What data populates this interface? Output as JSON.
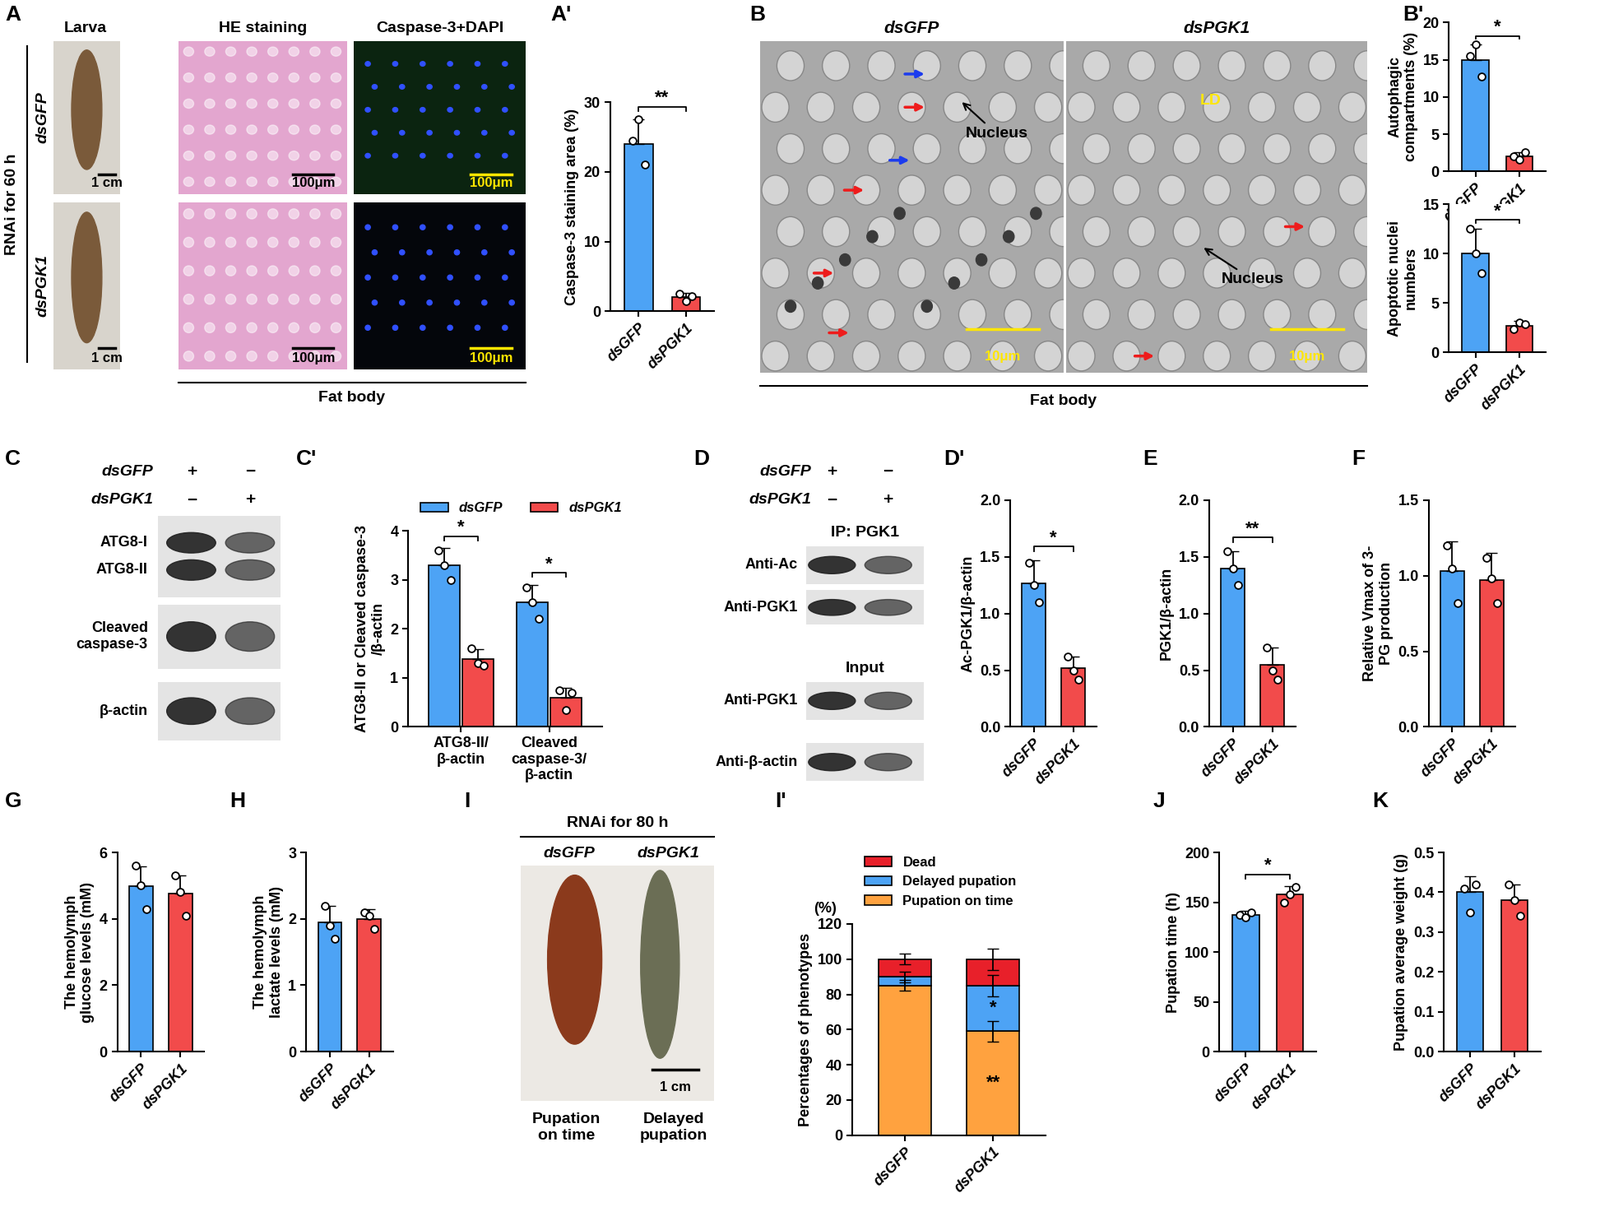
{
  "figure": {
    "image_panels": [
      {
        "panel": "A",
        "group_label": "RNAi for 60 h",
        "rows": [
          "dsGFP",
          "dsPGK1"
        ],
        "column_titles": [
          "Larva",
          "HE staining",
          "Caspase-3+DAPI"
        ],
        "scale_bars": [
          "1 cm",
          "100μm",
          "100μm"
        ],
        "caption": "Fat body"
      },
      {
        "panel": "B",
        "column_titles": [
          "dsGFP",
          "dsPGK1"
        ],
        "labels": [
          [
            "Nucleus"
          ],
          [
            "LD",
            "Nucleus"
          ]
        ],
        "scale_bar": "10μm",
        "caption": "Fat body"
      },
      {
        "panel": "C",
        "conditions": [
          {
            "name": "dsGFP",
            "lanes": [
              "+",
              "−"
            ]
          },
          {
            "name": "dsPGK1",
            "lanes": [
              "−",
              "+"
            ]
          }
        ],
        "blots": [
          [
            "ATG8-I",
            "ATG8-II"
          ],
          [
            "Cleaved\ncaspase-3"
          ],
          [
            "β-actin"
          ]
        ]
      },
      {
        "panel": "D",
        "conditions": [
          {
            "name": "dsGFP",
            "lanes": [
              "+",
              "−"
            ]
          },
          {
            "name": "dsPGK1",
            "lanes": [
              "−",
              "+"
            ]
          }
        ],
        "sections": [
          {
            "title": "IP: PGK1",
            "blots": [
              [
                "Anti-Ac"
              ],
              [
                "Anti-PGK1"
              ]
            ]
          },
          {
            "title": "Input",
            "blots": [
              [
                "Anti-PGK1"
              ],
              [
                "Anti-β-actin"
              ]
            ]
          }
        ]
      },
      {
        "panel": "I",
        "title": "RNAi for 80 h",
        "conditions": [
          "dsGFP",
          "dsPGK1"
        ],
        "scale_bar": "1 cm",
        "captions": [
          "Pupation\non time",
          "Delayed\npupation"
        ]
      }
    ]
  },
  "chart_data": [
    {
      "panel": "A'",
      "type": "bar",
      "ylabel": "Caspase-3 staining area (%)",
      "categories": [
        "dsGFP",
        "dsPGK1"
      ],
      "values": [
        24,
        2
      ],
      "errors": [
        3.5,
        0.7
      ],
      "points": [
        [
          24.5,
          27.5,
          21
        ],
        [
          2.5,
          1.5,
          2.2
        ]
      ],
      "colors": [
        "#4da3f5",
        "#f24b4b"
      ],
      "ylim": [
        0,
        30
      ],
      "yticks": [
        0,
        10,
        20,
        30
      ],
      "significance": "**"
    },
    {
      "panel": "B'",
      "type": "bar",
      "ylabel": "Autophagic\ncompartments (%)",
      "categories": [
        "dsGFP",
        "dsPGK1"
      ],
      "values": [
        15,
        2
      ],
      "errors": [
        2,
        0.6
      ],
      "points": [
        [
          15.5,
          17,
          12.8
        ],
        [
          2,
          1.6,
          2.6
        ]
      ],
      "colors": [
        "#4da3f5",
        "#f24b4b"
      ],
      "ylim": [
        0,
        20
      ],
      "yticks": [
        0,
        5,
        10,
        15,
        20
      ],
      "significance": "*"
    },
    {
      "type": "bar",
      "ylabel": "Apoptotic nuclei\nnumbers",
      "categories": [
        "dsGFP",
        "dsPGK1"
      ],
      "values": [
        10,
        2.7
      ],
      "errors": [
        2.5,
        0.5
      ],
      "points": [
        [
          12.5,
          10,
          8
        ],
        [
          2.3,
          3,
          2.8
        ]
      ],
      "colors": [
        "#4da3f5",
        "#f24b4b"
      ],
      "ylim": [
        0,
        15
      ],
      "yticks": [
        0,
        5,
        10,
        15
      ],
      "significance": "*"
    },
    {
      "panel": "C'",
      "type": "bar",
      "ylabel": "ATG8-II or Cleaved caspase-3\n/β-actin",
      "categories": [
        "ATG8-II/\nβ-actin",
        "Cleaved\ncaspase-3/\nβ-actin"
      ],
      "series": [
        {
          "name": "dsGFP",
          "color": "#4da3f5",
          "values": [
            3.3,
            2.55
          ],
          "errors": [
            0.35,
            0.35
          ],
          "points": [
            [
              3.6,
              3.3,
              3.0
            ],
            [
              2.85,
              2.55,
              2.2
            ]
          ]
        },
        {
          "name": "dsPGK1",
          "color": "#f24b4b",
          "values": [
            1.38,
            0.6
          ],
          "errors": [
            0.2,
            0.2
          ],
          "points": [
            [
              1.6,
              1.3,
              1.25
            ],
            [
              0.75,
              0.35,
              0.7
            ]
          ]
        }
      ],
      "ylim": [
        0,
        4
      ],
      "yticks": [
        0,
        1,
        2,
        3,
        4
      ],
      "significance": [
        "*",
        "*"
      ],
      "legend": "upper left"
    },
    {
      "panel": "D'",
      "type": "bar",
      "ylabel": "Ac-PGK1/β-actin",
      "categories": [
        "dsGFP",
        "dsPGK1"
      ],
      "values": [
        1.27,
        0.52
      ],
      "errors": [
        0.2,
        0.1
      ],
      "points": [
        [
          1.45,
          1.25,
          1.1
        ],
        [
          0.62,
          0.5,
          0.42
        ]
      ],
      "colors": [
        "#4da3f5",
        "#f24b4b"
      ],
      "ylim": [
        0,
        2
      ],
      "yticks": [
        {
          "value": 0,
          "label": "0.0"
        },
        0.5,
        {
          "value": 1,
          "label": "1.0"
        },
        1.5,
        {
          "value": 2,
          "label": "2.0"
        }
      ],
      "significance": "*"
    },
    {
      "panel": "E",
      "type": "bar",
      "ylabel": "PGK1/β-actin",
      "categories": [
        "dsGFP",
        "dsPGK1"
      ],
      "values": [
        1.4,
        0.55
      ],
      "errors": [
        0.15,
        0.15
      ],
      "points": [
        [
          1.55,
          1.4,
          1.25
        ],
        [
          0.7,
          0.5,
          0.42
        ]
      ],
      "colors": [
        "#4da3f5",
        "#f24b4b"
      ],
      "ylim": [
        0,
        2
      ],
      "yticks": [
        {
          "value": 0,
          "label": "0.0"
        },
        0.5,
        {
          "value": 1,
          "label": "1.0"
        },
        1.5,
        {
          "value": 2,
          "label": "2.0"
        }
      ],
      "significance": "**"
    },
    {
      "panel": "F",
      "type": "bar",
      "ylabel": "Relative Vmax of 3-\nPG production",
      "categories": [
        "dsGFP",
        "dsPGK1"
      ],
      "values": [
        1.03,
        0.97
      ],
      "errors": [
        0.2,
        0.18
      ],
      "points": [
        [
          1.2,
          1.05,
          0.82
        ],
        [
          1.12,
          0.98,
          0.82
        ]
      ],
      "colors": [
        "#4da3f5",
        "#f24b4b"
      ],
      "ylim": [
        0,
        1.5
      ],
      "yticks": [
        {
          "value": 0,
          "label": "0.0"
        },
        0.5,
        {
          "value": 1,
          "label": "1.0"
        },
        1.5
      ]
    },
    {
      "panel": "G",
      "type": "bar",
      "ylabel": "The hemolymph\nglucose levels (mM)",
      "categories": [
        "dsGFP",
        "dsPGK1"
      ],
      "values": [
        4.98,
        4.75
      ],
      "errors": [
        0.6,
        0.55
      ],
      "points": [
        [
          5.6,
          5.0,
          4.3
        ],
        [
          5.3,
          4.8,
          4.1
        ]
      ],
      "colors": [
        "#4da3f5",
        "#f24b4b"
      ],
      "ylim": [
        0,
        6
      ],
      "yticks": [
        0,
        2,
        4,
        6
      ]
    },
    {
      "panel": "H",
      "type": "bar",
      "ylabel": "The hemolymph\nlactate levels (mM)",
      "categories": [
        "dsGFP",
        "dsPGK1"
      ],
      "values": [
        1.95,
        2.0
      ],
      "errors": [
        0.25,
        0.15
      ],
      "points": [
        [
          2.2,
          1.9,
          1.7
        ],
        [
          2.1,
          2.05,
          1.85
        ]
      ],
      "colors": [
        "#4da3f5",
        "#f24b4b"
      ],
      "ylim": [
        0,
        3
      ],
      "yticks": [
        0,
        1,
        2,
        3
      ]
    },
    {
      "panel": "I'",
      "type": "bar",
      "stacked": true,
      "ylabel": "Percentages of phenotypes",
      "annotation": "(%)",
      "categories": [
        "dsGFP",
        "dsPGK1"
      ],
      "series": [
        {
          "name": "Pupation on time",
          "color": "#ffa23f",
          "values": [
            85,
            59
          ],
          "errors": [
            3,
            6
          ],
          "significance": [
            null,
            "**"
          ]
        },
        {
          "name": "Delayed pupation",
          "color": "#4da3f5",
          "values": [
            5,
            26
          ],
          "errors": [
            3,
            6
          ],
          "significance": [
            null,
            "*"
          ]
        },
        {
          "name": "Dead",
          "color": "#e8202a",
          "values": [
            10,
            15
          ],
          "errors": [
            3,
            6
          ]
        }
      ],
      "ylim": [
        0,
        120
      ],
      "yticks": [
        0,
        20,
        40,
        60,
        80,
        100,
        120
      ],
      "legend": "upper left"
    },
    {
      "panel": "J",
      "type": "bar",
      "ylabel": "Pupation time (h)",
      "categories": [
        "dsGFP",
        "dsPGK1"
      ],
      "values": [
        137,
        158
      ],
      "errors": [
        4,
        8
      ],
      "points": [
        [
          137,
          135,
          140
        ],
        [
          150,
          158,
          165
        ]
      ],
      "colors": [
        "#4da3f5",
        "#f24b4b"
      ],
      "ylim": [
        0,
        200
      ],
      "yticks": [
        0,
        50,
        100,
        150,
        200
      ],
      "significance": "*"
    },
    {
      "panel": "K",
      "type": "bar",
      "ylabel": "Pupation average weight (g)",
      "categories": [
        "dsGFP",
        "dsPGK1"
      ],
      "values": [
        0.4,
        0.38
      ],
      "errors": [
        0.04,
        0.04
      ],
      "points": [
        [
          0.41,
          0.35,
          0.42
        ],
        [
          0.42,
          0.38,
          0.34
        ]
      ],
      "colors": [
        "#4da3f5",
        "#f24b4b"
      ],
      "ylim": [
        0,
        0.5
      ],
      "yticks": [
        {
          "value": 0,
          "label": "0.0"
        },
        0.1,
        0.2,
        0.3,
        0.4,
        0.5
      ]
    }
  ]
}
